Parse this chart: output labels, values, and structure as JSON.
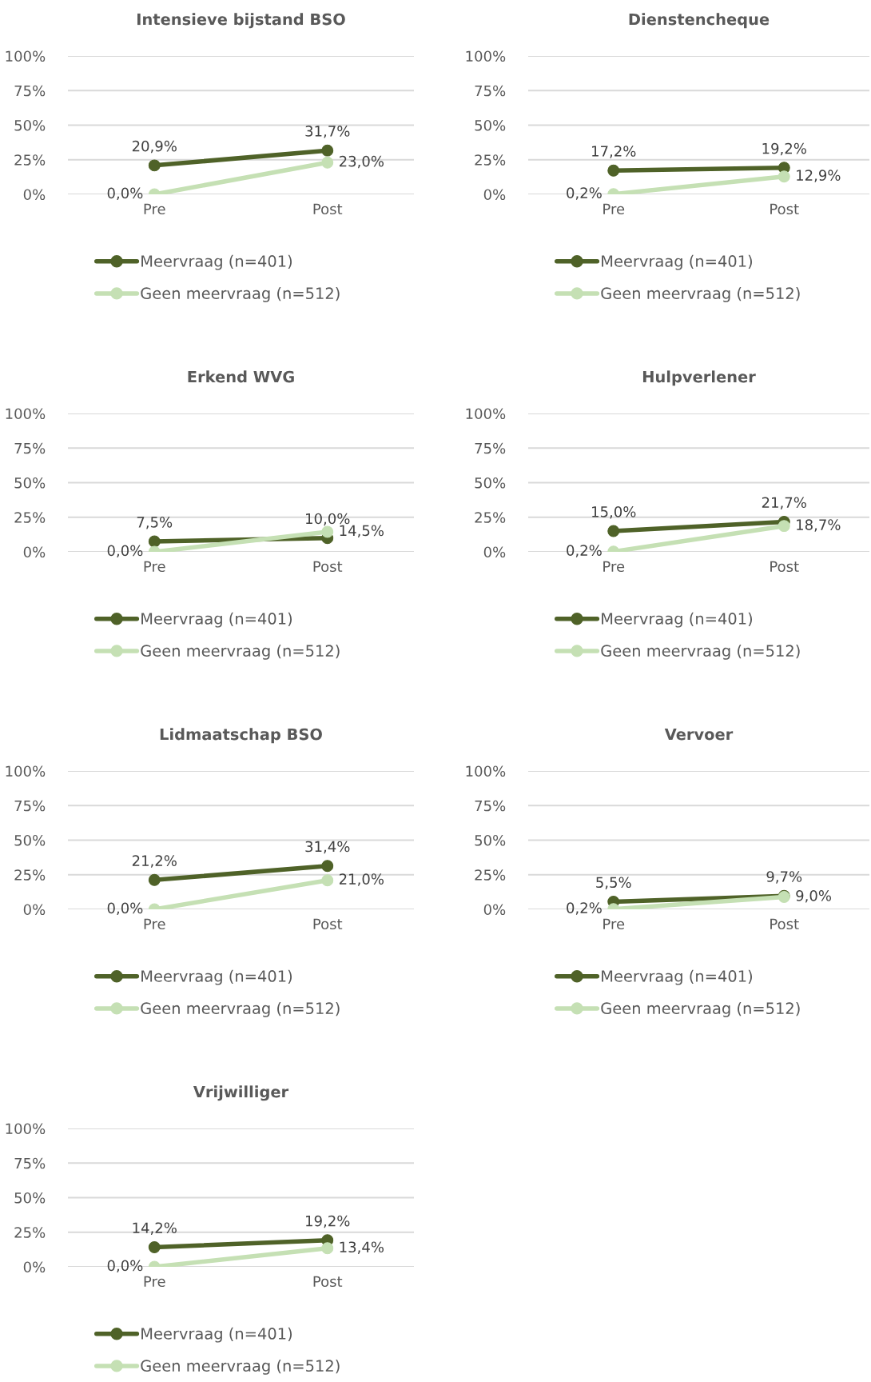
{
  "chart_data": [
    {
      "type": "line",
      "title": "Intensieve bijstand BSO",
      "categories": [
        "Pre",
        "Post"
      ],
      "ylim": [
        0,
        100
      ],
      "yticks": [
        {
          "value": 0,
          "label": "0%"
        },
        {
          "value": 25,
          "label": "25%"
        },
        {
          "value": 50,
          "label": "50%"
        },
        {
          "value": 75,
          "label": "75%"
        },
        {
          "value": 100,
          "label": "100%"
        }
      ],
      "grid": "y",
      "legend": "bottom",
      "marker": "circle",
      "series": [
        {
          "name": "Meervraag (n=401)",
          "color": "#4f6228",
          "values": [
            20.9,
            31.7
          ],
          "value_labels": [
            "20,9%",
            "31,7%"
          ]
        },
        {
          "name": "Geen meervraag (n=512)",
          "color": "#c5e0b4",
          "values": [
            0.0,
            23.0
          ],
          "value_labels": [
            "0,0%",
            "23,0%"
          ]
        }
      ]
    },
    {
      "type": "line",
      "title": "Dienstencheque",
      "categories": [
        "Pre",
        "Post"
      ],
      "ylim": [
        0,
        100
      ],
      "yticks": [
        {
          "value": 0,
          "label": "0%"
        },
        {
          "value": 25,
          "label": "25%"
        },
        {
          "value": 50,
          "label": "50%"
        },
        {
          "value": 75,
          "label": "75%"
        },
        {
          "value": 100,
          "label": "100%"
        }
      ],
      "grid": "y",
      "legend": "bottom",
      "marker": "circle",
      "series": [
        {
          "name": "Meervraag (n=401)",
          "color": "#4f6228",
          "values": [
            17.2,
            19.2
          ],
          "value_labels": [
            "17,2%",
            "19,2%"
          ]
        },
        {
          "name": "Geen meervraag (n=512)",
          "color": "#c5e0b4",
          "values": [
            0.2,
            12.9
          ],
          "value_labels": [
            "0,2%",
            "12,9%"
          ]
        }
      ]
    },
    {
      "type": "line",
      "title": "Erkend WVG",
      "categories": [
        "Pre",
        "Post"
      ],
      "ylim": [
        0,
        100
      ],
      "yticks": [
        {
          "value": 0,
          "label": "0%"
        },
        {
          "value": 25,
          "label": "25%"
        },
        {
          "value": 50,
          "label": "50%"
        },
        {
          "value": 75,
          "label": "75%"
        },
        {
          "value": 100,
          "label": "100%"
        }
      ],
      "grid": "y",
      "legend": "bottom",
      "marker": "circle",
      "series": [
        {
          "name": "Meervraag (n=401)",
          "color": "#4f6228",
          "values": [
            7.5,
            10.0
          ],
          "value_labels": [
            "7,5%",
            "10,0%"
          ]
        },
        {
          "name": "Geen meervraag (n=512)",
          "color": "#c5e0b4",
          "values": [
            0.0,
            14.5
          ],
          "value_labels": [
            "0,0%",
            "14,5%"
          ]
        }
      ]
    },
    {
      "type": "line",
      "title": "Hulpverlener",
      "categories": [
        "Pre",
        "Post"
      ],
      "ylim": [
        0,
        100
      ],
      "yticks": [
        {
          "value": 0,
          "label": "0%"
        },
        {
          "value": 25,
          "label": "25%"
        },
        {
          "value": 50,
          "label": "50%"
        },
        {
          "value": 75,
          "label": "75%"
        },
        {
          "value": 100,
          "label": "100%"
        }
      ],
      "grid": "y",
      "legend": "bottom",
      "marker": "circle",
      "series": [
        {
          "name": "Meervraag (n=401)",
          "color": "#4f6228",
          "values": [
            15.0,
            21.7
          ],
          "value_labels": [
            "15,0%",
            "21,7%"
          ]
        },
        {
          "name": "Geen meervraag (n=512)",
          "color": "#c5e0b4",
          "values": [
            0.2,
            18.7
          ],
          "value_labels": [
            "0,2%",
            "18,7%"
          ]
        }
      ]
    },
    {
      "type": "line",
      "title": "Lidmaatschap BSO",
      "categories": [
        "Pre",
        "Post"
      ],
      "ylim": [
        0,
        100
      ],
      "yticks": [
        {
          "value": 0,
          "label": "0%"
        },
        {
          "value": 25,
          "label": "25%"
        },
        {
          "value": 50,
          "label": "50%"
        },
        {
          "value": 75,
          "label": "75%"
        },
        {
          "value": 100,
          "label": "100%"
        }
      ],
      "grid": "y",
      "legend": "bottom",
      "marker": "circle",
      "series": [
        {
          "name": "Meervraag (n=401)",
          "color": "#4f6228",
          "values": [
            21.2,
            31.4
          ],
          "value_labels": [
            "21,2%",
            "31,4%"
          ]
        },
        {
          "name": "Geen meervraag (n=512)",
          "color": "#c5e0b4",
          "values": [
            0.0,
            21.0
          ],
          "value_labels": [
            "0,0%",
            "21,0%"
          ]
        }
      ]
    },
    {
      "type": "line",
      "title": "Vervoer",
      "categories": [
        "Pre",
        "Post"
      ],
      "ylim": [
        0,
        100
      ],
      "yticks": [
        {
          "value": 0,
          "label": "0%"
        },
        {
          "value": 25,
          "label": "25%"
        },
        {
          "value": 50,
          "label": "50%"
        },
        {
          "value": 75,
          "label": "75%"
        },
        {
          "value": 100,
          "label": "100%"
        }
      ],
      "grid": "y",
      "legend": "bottom",
      "marker": "circle",
      "series": [
        {
          "name": "Meervraag (n=401)",
          "color": "#4f6228",
          "values": [
            5.5,
            9.7
          ],
          "value_labels": [
            "5,5%",
            "9,7%"
          ]
        },
        {
          "name": "Geen meervraag (n=512)",
          "color": "#c5e0b4",
          "values": [
            0.2,
            9.0
          ],
          "value_labels": [
            "0,2%",
            "9,0%"
          ]
        }
      ]
    },
    {
      "type": "line",
      "title": "Vrijwilliger",
      "categories": [
        "Pre",
        "Post"
      ],
      "ylim": [
        0,
        100
      ],
      "yticks": [
        {
          "value": 0,
          "label": "0%"
        },
        {
          "value": 25,
          "label": "25%"
        },
        {
          "value": 50,
          "label": "50%"
        },
        {
          "value": 75,
          "label": "75%"
        },
        {
          "value": 100,
          "label": "100%"
        }
      ],
      "grid": "y",
      "legend": "bottom",
      "marker": "circle",
      "series": [
        {
          "name": "Meervraag (n=401)",
          "color": "#4f6228",
          "values": [
            14.2,
            19.2
          ],
          "value_labels": [
            "14,2%",
            "19,2%"
          ]
        },
        {
          "name": "Geen meervraag (n=512)",
          "color": "#c5e0b4",
          "values": [
            0.0,
            13.4
          ],
          "value_labels": [
            "0,0%",
            "13,4%"
          ]
        }
      ]
    }
  ]
}
